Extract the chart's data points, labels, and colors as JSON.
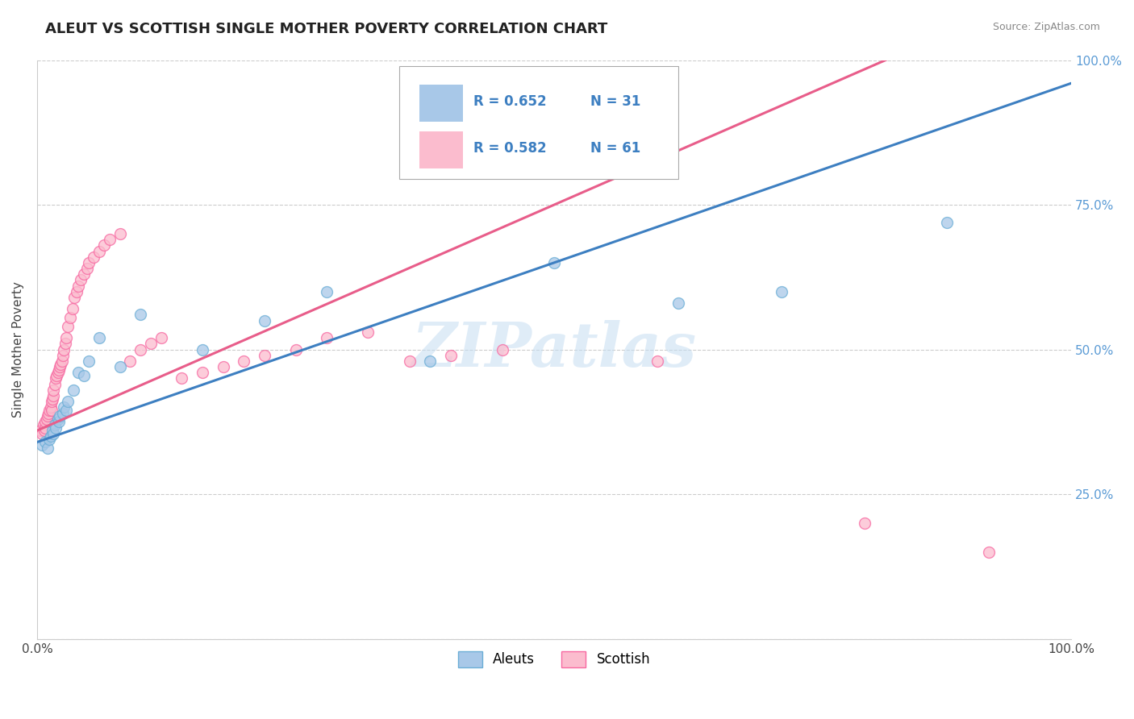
{
  "title": "ALEUT VS SCOTTISH SINGLE MOTHER POVERTY CORRELATION CHART",
  "source": "Source: ZipAtlas.com",
  "ylabel": "Single Mother Poverty",
  "watermark": "ZIPatlas",
  "legend_r_aleut": "R = 0.652",
  "legend_n_aleut": "N = 31",
  "legend_r_scottish": "R = 0.582",
  "legend_n_scottish": "N = 61",
  "aleut_color": "#a8c8e8",
  "aleut_edge_color": "#6baed6",
  "scottish_color": "#fbbcce",
  "scottish_edge_color": "#f768a1",
  "aleut_line_color": "#3d7fc1",
  "scottish_line_color": "#e85d8a",
  "background_color": "#ffffff",
  "grid_color": "#cccccc",
  "xlim": [
    0.0,
    1.0
  ],
  "ylim": [
    0.0,
    1.0
  ],
  "right_ytick_labels": [
    "25.0%",
    "50.0%",
    "75.0%",
    "100.0%"
  ],
  "right_ytick_vals": [
    0.25,
    0.5,
    0.75,
    1.0
  ],
  "aleut_slope": 0.62,
  "aleut_intercept": 0.34,
  "scottish_slope": 0.78,
  "scottish_intercept": 0.36,
  "aleut_x": [
    0.005,
    0.008,
    0.01,
    0.012,
    0.013,
    0.015,
    0.016,
    0.017,
    0.018,
    0.02,
    0.021,
    0.022,
    0.025,
    0.026,
    0.028,
    0.03,
    0.035,
    0.04,
    0.045,
    0.05,
    0.06,
    0.08,
    0.1,
    0.16,
    0.22,
    0.28,
    0.38,
    0.5,
    0.62,
    0.72,
    0.88
  ],
  "aleut_y": [
    0.335,
    0.34,
    0.33,
    0.345,
    0.35,
    0.36,
    0.355,
    0.37,
    0.365,
    0.38,
    0.375,
    0.385,
    0.39,
    0.4,
    0.395,
    0.41,
    0.43,
    0.46,
    0.455,
    0.48,
    0.52,
    0.47,
    0.56,
    0.5,
    0.55,
    0.6,
    0.48,
    0.65,
    0.58,
    0.6,
    0.72
  ],
  "scottish_x": [
    0.003,
    0.005,
    0.006,
    0.007,
    0.008,
    0.008,
    0.009,
    0.01,
    0.011,
    0.012,
    0.013,
    0.014,
    0.014,
    0.015,
    0.016,
    0.016,
    0.017,
    0.018,
    0.019,
    0.02,
    0.021,
    0.022,
    0.023,
    0.024,
    0.025,
    0.026,
    0.027,
    0.028,
    0.03,
    0.032,
    0.034,
    0.036,
    0.038,
    0.04,
    0.042,
    0.045,
    0.048,
    0.05,
    0.055,
    0.06,
    0.065,
    0.07,
    0.08,
    0.09,
    0.1,
    0.11,
    0.12,
    0.14,
    0.16,
    0.18,
    0.2,
    0.22,
    0.25,
    0.28,
    0.32,
    0.36,
    0.4,
    0.45,
    0.6,
    0.8,
    0.92
  ],
  "scottish_y": [
    0.36,
    0.355,
    0.37,
    0.36,
    0.365,
    0.375,
    0.38,
    0.385,
    0.39,
    0.395,
    0.4,
    0.395,
    0.41,
    0.415,
    0.42,
    0.43,
    0.44,
    0.45,
    0.455,
    0.46,
    0.465,
    0.47,
    0.475,
    0.48,
    0.49,
    0.5,
    0.51,
    0.52,
    0.54,
    0.555,
    0.57,
    0.59,
    0.6,
    0.61,
    0.62,
    0.63,
    0.64,
    0.65,
    0.66,
    0.67,
    0.68,
    0.69,
    0.7,
    0.48,
    0.5,
    0.51,
    0.52,
    0.45,
    0.46,
    0.47,
    0.48,
    0.49,
    0.5,
    0.52,
    0.53,
    0.48,
    0.49,
    0.5,
    0.48,
    0.2,
    0.15
  ]
}
